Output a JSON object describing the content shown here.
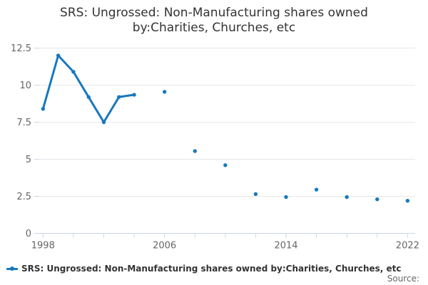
{
  "title": "SRS: Ungrossed: Non-Manufacturing shares owned by:Charities, Churches, etc",
  "legend": {
    "label": "SRS: Ungrossed: Non-Manufacturing shares owned by:Charities, Churches, etc"
  },
  "footer": {
    "source_label": "Source:"
  },
  "colors": {
    "series": "#1878bf",
    "grid": "#e6e6e6",
    "axis": "#ccd6eb",
    "tick_label": "#666666",
    "title_text": "#333333"
  },
  "chart_data": {
    "type": "line",
    "title": "SRS: Ungrossed: Non-Manufacturing shares owned by:Charities, Churches, etc",
    "xlabel": "",
    "ylabel": "",
    "xlim": [
      1997.75,
      2022.5
    ],
    "ylim": [
      0,
      12.5
    ],
    "grid": "horizontal",
    "legend_position": "bottom-left",
    "gap_breaks_line": true,
    "y_ticks": [
      0,
      2.5,
      5,
      7.5,
      10,
      12.5
    ],
    "y_tick_labels": [
      "0",
      "2.5",
      "5",
      "7.5",
      "10",
      "12.5"
    ],
    "x_ticks": [
      1998,
      2000,
      2002,
      2004,
      2006,
      2008,
      2010,
      2012,
      2014,
      2016,
      2018,
      2020,
      2022
    ],
    "x_labeled_ticks": [
      1998,
      2006,
      2014,
      2022
    ],
    "series": [
      {
        "name": "SRS: Ungrossed: Non-Manufacturing shares owned by:Charities, Churches, etc",
        "points": [
          [
            1998,
            8.4
          ],
          [
            1999,
            12.0
          ],
          [
            2000,
            10.9
          ],
          [
            2001,
            9.2
          ],
          [
            2002,
            7.5
          ],
          [
            2003,
            9.2
          ],
          [
            2004,
            9.35
          ],
          [
            2006,
            9.55
          ],
          [
            2008,
            5.55
          ],
          [
            2010,
            4.6
          ],
          [
            2012,
            2.65
          ],
          [
            2014,
            2.45
          ],
          [
            2016,
            2.95
          ],
          [
            2018,
            2.45
          ],
          [
            2020,
            2.3
          ],
          [
            2022,
            2.2
          ]
        ]
      }
    ]
  }
}
